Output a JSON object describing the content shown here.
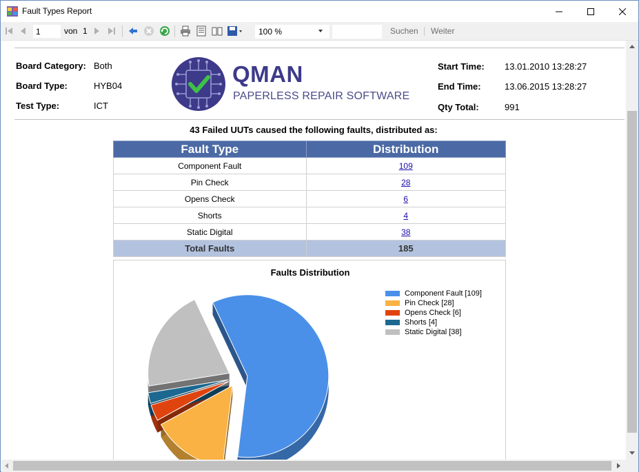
{
  "window": {
    "title": "Fault Types Report"
  },
  "toolbar": {
    "page_current": "1",
    "page_of_label": "von",
    "page_total": "1",
    "zoom": "100 %",
    "search_label": "Suchen",
    "next_label": "Weiter"
  },
  "header": {
    "left": [
      {
        "label": "Board Category:",
        "value": "Both"
      },
      {
        "label": "Board Type:",
        "value": "HYB04"
      },
      {
        "label": "Test Type:",
        "value": "ICT"
      }
    ],
    "right": [
      {
        "label": "Start Time:",
        "value": "13.01.2010 13:28:27"
      },
      {
        "label": "End Time:",
        "value": "13.06.2015 13:28:27"
      },
      {
        "label": "Qty Total:",
        "value": "991"
      }
    ],
    "logo": {
      "title": "QMAN",
      "subtitle": "PAPERLESS REPAIR SOFTWARE"
    }
  },
  "summary": "43 Failed UUTs caused the following faults, distributed as:",
  "table": {
    "columns": [
      "Fault Type",
      "Distribution"
    ],
    "rows": [
      {
        "type": "Component Fault",
        "count": "109"
      },
      {
        "type": "Pin Check",
        "count": "28"
      },
      {
        "type": "Opens Check",
        "count": "6"
      },
      {
        "type": "Shorts",
        "count": "4"
      },
      {
        "type": "Static Digital",
        "count": "38"
      }
    ],
    "total_label": "Total Faults",
    "total_value": "185"
  },
  "chart_data": {
    "type": "pie",
    "title": "Faults Distribution",
    "categories": [
      "Component Fault",
      "Pin Check",
      "Opens Check",
      "Shorts",
      "Static Digital"
    ],
    "values": [
      109,
      28,
      6,
      4,
      38
    ],
    "legend_labels": [
      "Component Fault [109]",
      "Pin Check [28]",
      "Opens Check [6]",
      "Shorts [4]",
      "Static Digital [38]"
    ],
    "colors": [
      "#4a90e8",
      "#f9b243",
      "#e0440e",
      "#1c6890",
      "#c0c0c0"
    ],
    "legend_position": "top-right",
    "style": "3d-exploded"
  }
}
